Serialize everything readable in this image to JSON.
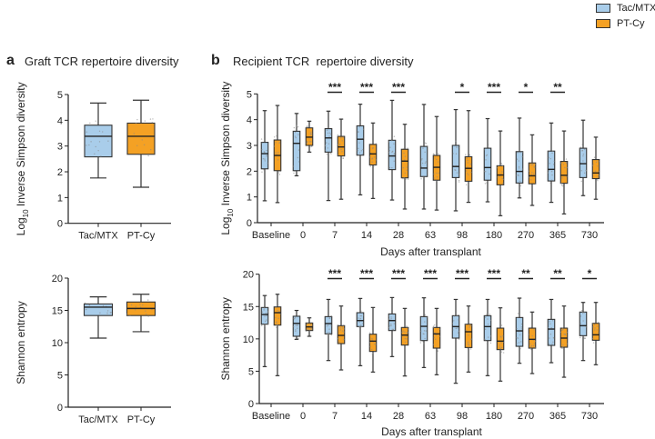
{
  "legend": [
    {
      "label": "Tac/MTX",
      "color": "#a9cdea"
    },
    {
      "label": "PT-Cy",
      "color": "#f4a124"
    }
  ],
  "panels": {
    "a": {
      "letter": "a",
      "title": "Graft TCR repertoire diversity"
    },
    "b": {
      "letter": "b",
      "title": "Recipient TCR  repertoire diversity"
    }
  },
  "chart_data": [
    {
      "type": "box",
      "panel": "a",
      "ylabel": "Log10 Inverse Simpson diversity",
      "ylim": [
        0,
        5
      ],
      "yticks": [
        0,
        1,
        2,
        3,
        4,
        5
      ],
      "categories": [
        "Tac/MTX",
        "PT-Cy"
      ],
      "category_colors": [
        "#a9cdea",
        "#f4a124"
      ],
      "boxes": [
        {
          "max": 4.67,
          "q3": 3.81,
          "median": 3.38,
          "q1": 2.58,
          "min": 1.76
        },
        {
          "max": 4.78,
          "q3": 3.89,
          "median": 3.38,
          "q1": 2.68,
          "min": 1.4
        }
      ]
    },
    {
      "type": "box",
      "panel": "a",
      "ylabel": "Shannon entropy",
      "ylim": [
        0,
        20
      ],
      "yticks": [
        0,
        5,
        10,
        15,
        20
      ],
      "categories": [
        "Tac/MTX",
        "PT-Cy"
      ],
      "category_colors": [
        "#a9cdea",
        "#f4a124"
      ],
      "boxes": [
        {
          "max": 17.1,
          "q3": 16.0,
          "median": 15.5,
          "q1": 14.2,
          "min": 10.7
        },
        {
          "max": 17.5,
          "q3": 16.3,
          "median": 15.3,
          "q1": 14.2,
          "min": 11.7
        }
      ]
    },
    {
      "type": "box",
      "panel": "b",
      "ylabel": "Log10 Inverse Simpson diversity",
      "xlabel": "Days after transplant",
      "ylim": [
        0,
        5
      ],
      "yticks": [
        0,
        1,
        2,
        3,
        4,
        5
      ],
      "categories": [
        "Baseline",
        "0",
        "7",
        "14",
        "28",
        "63",
        "98",
        "180",
        "270",
        "365",
        "730"
      ],
      "series": [
        {
          "name": "Tac/MTX",
          "color": "#a9cdea",
          "boxes": [
            {
              "max": 4.35,
              "q3": 3.12,
              "median": 2.68,
              "q1": 2.09,
              "min": 0.85
            },
            {
              "max": 4.24,
              "q3": 3.55,
              "median": 3.08,
              "q1": 2.02,
              "min": 1.82
            },
            {
              "max": 4.33,
              "q3": 3.65,
              "median": 3.29,
              "q1": 2.74,
              "min": 0.86
            },
            {
              "max": 4.6,
              "q3": 3.76,
              "median": 3.24,
              "q1": 2.62,
              "min": 1.08
            },
            {
              "max": 4.75,
              "q3": 3.2,
              "median": 2.59,
              "q1": 2.06,
              "min": 0.88
            },
            {
              "max": 4.59,
              "q3": 2.96,
              "median": 2.12,
              "q1": 1.79,
              "min": 0.53
            },
            {
              "max": 4.39,
              "q3": 3.0,
              "median": 2.18,
              "q1": 1.75,
              "min": 0.46
            },
            {
              "max": 4.04,
              "q3": 2.89,
              "median": 2.14,
              "q1": 1.65,
              "min": 0.81
            },
            {
              "max": 4.06,
              "q3": 2.76,
              "median": 1.99,
              "q1": 1.54,
              "min": 0.96
            },
            {
              "max": 3.87,
              "q3": 2.78,
              "median": 2.07,
              "q1": 1.62,
              "min": 0.79
            },
            {
              "max": 3.98,
              "q3": 2.89,
              "median": 2.29,
              "q1": 1.75,
              "min": 1.05
            }
          ]
        },
        {
          "name": "PT-Cy",
          "color": "#f4a124",
          "boxes": [
            {
              "max": 4.55,
              "q3": 3.21,
              "median": 2.61,
              "q1": 2.02,
              "min": 0.78
            },
            {
              "max": 3.94,
              "q3": 3.68,
              "median": 3.32,
              "q1": 3.0,
              "min": 2.74
            },
            {
              "max": 4.02,
              "q3": 3.35,
              "median": 2.94,
              "q1": 2.59,
              "min": 0.91
            },
            {
              "max": 3.87,
              "q3": 3.04,
              "median": 2.67,
              "q1": 2.24,
              "min": 0.94
            },
            {
              "max": 3.82,
              "q3": 2.85,
              "median": 2.39,
              "q1": 1.74,
              "min": 0.53
            },
            {
              "max": 4.12,
              "q3": 2.61,
              "median": 2.15,
              "q1": 1.65,
              "min": 0.49
            },
            {
              "max": 4.35,
              "q3": 2.56,
              "median": 2.11,
              "q1": 1.61,
              "min": 0.79
            },
            {
              "max": 3.56,
              "q3": 2.21,
              "median": 1.85,
              "q1": 1.47,
              "min": 0.27
            },
            {
              "max": 3.41,
              "q3": 2.32,
              "median": 1.82,
              "q1": 1.51,
              "min": 0.67
            },
            {
              "max": 3.56,
              "q3": 2.38,
              "median": 1.84,
              "q1": 1.53,
              "min": 0.34
            },
            {
              "max": 3.32,
              "q3": 2.45,
              "median": 1.93,
              "q1": 1.71,
              "min": 0.91
            }
          ]
        }
      ],
      "significance": [
        "",
        "",
        "***",
        "***",
        "***",
        "",
        "*",
        "***",
        "*",
        "**",
        ""
      ]
    },
    {
      "type": "box",
      "panel": "b",
      "ylabel": "Shannon entropy",
      "xlabel": "Days after transplant",
      "ylim": [
        0,
        20
      ],
      "yticks": [
        0,
        5,
        10,
        15,
        20
      ],
      "categories": [
        "Baseline",
        "0",
        "7",
        "14",
        "28",
        "63",
        "98",
        "180",
        "270",
        "365",
        "730"
      ],
      "series": [
        {
          "name": "Tac/MTX",
          "color": "#a9cdea",
          "boxes": [
            {
              "max": 16.7,
              "q3": 14.85,
              "median": 13.77,
              "q1": 12.27,
              "min": 5.71
            },
            {
              "max": 14.4,
              "q3": 13.5,
              "median": 12.4,
              "q1": 10.4,
              "min": 9.93
            },
            {
              "max": 16.1,
              "q3": 13.44,
              "median": 12.37,
              "q1": 10.77,
              "min": 6.65
            },
            {
              "max": 16.25,
              "q3": 14.05,
              "median": 12.83,
              "q1": 11.9,
              "min": 5.85
            },
            {
              "max": 16.39,
              "q3": 13.86,
              "median": 12.83,
              "q1": 11.29,
              "min": 7.26
            },
            {
              "max": 16.35,
              "q3": 13.44,
              "median": 11.94,
              "q1": 9.74,
              "min": 5.57
            },
            {
              "max": 16.1,
              "q3": 13.58,
              "median": 11.9,
              "q1": 10.12,
              "min": 3.14
            },
            {
              "max": 16.1,
              "q3": 13.58,
              "median": 11.9,
              "q1": 9.74,
              "min": 4.31
            },
            {
              "max": 16.3,
              "q3": 13.3,
              "median": 11.24,
              "q1": 8.85,
              "min": 6.23
            },
            {
              "max": 16.1,
              "q3": 13.02,
              "median": 11.52,
              "q1": 8.99,
              "min": 6.32
            },
            {
              "max": 15.64,
              "q3": 14.15,
              "median": 12.04,
              "q1": 10.49,
              "min": 6.65
            }
          ]
        },
        {
          "name": "PT-Cy",
          "color": "#f4a124",
          "boxes": [
            {
              "max": 16.9,
              "q3": 14.94,
              "median": 14.05,
              "q1": 12.13,
              "min": 4.31
            },
            {
              "max": 13.25,
              "q3": 12.46,
              "median": 11.85,
              "q1": 11.29,
              "min": 10.4
            },
            {
              "max": 15.08,
              "q3": 12.04,
              "median": 10.54,
              "q1": 9.27,
              "min": 5.2
            },
            {
              "max": 14.85,
              "q3": 10.73,
              "median": 9.65,
              "q1": 8.06,
              "min": 4.87
            },
            {
              "max": 14.71,
              "q3": 11.76,
              "median": 10.59,
              "q1": 9.04,
              "min": 4.26
            },
            {
              "max": 14.71,
              "q3": 11.76,
              "median": 10.77,
              "q1": 8.57,
              "min": 4.45
            },
            {
              "max": 15.08,
              "q3": 12.27,
              "median": 11.1,
              "q1": 8.66,
              "min": 4.87
            },
            {
              "max": 14.8,
              "q3": 11.66,
              "median": 9.65,
              "q1": 8.34,
              "min": 3.47
            },
            {
              "max": 14.15,
              "q3": 11.66,
              "median": 9.93,
              "q1": 8.57,
              "min": 4.64
            },
            {
              "max": 15.08,
              "q3": 11.66,
              "median": 10.12,
              "q1": 8.71,
              "min": 4.07
            },
            {
              "max": 15.64,
              "q3": 12.41,
              "median": 10.63,
              "q1": 9.79,
              "min": 6.0
            }
          ]
        }
      ],
      "significance": [
        "",
        "",
        "***",
        "***",
        "***",
        "***",
        "***",
        "***",
        "**",
        "**",
        "*"
      ]
    }
  ]
}
